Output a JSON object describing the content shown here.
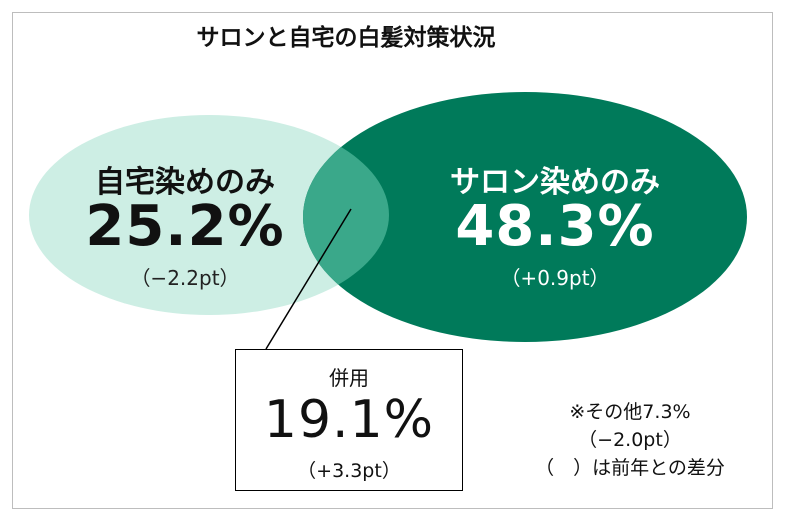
{
  "title": "サロンと自宅の白髪対策状況",
  "home_only": {
    "label": "自宅染めのみ",
    "value": "25.2%",
    "change": "（−2.2pt）"
  },
  "salon_only": {
    "label": "サロン染めのみ",
    "value": "48.3%",
    "change": "（+0.9pt）"
  },
  "combined": {
    "label": "併用",
    "value": "19.1%",
    "change": "（+3.3pt）"
  },
  "other": {
    "label": "※その他7.3%",
    "change": "（−2.0pt）"
  },
  "note": "（　）は前年との差分",
  "colors": {
    "home_circle": "#cdeee4",
    "salon_circle": "#007a5a",
    "overlap": "#3aa88a"
  }
}
